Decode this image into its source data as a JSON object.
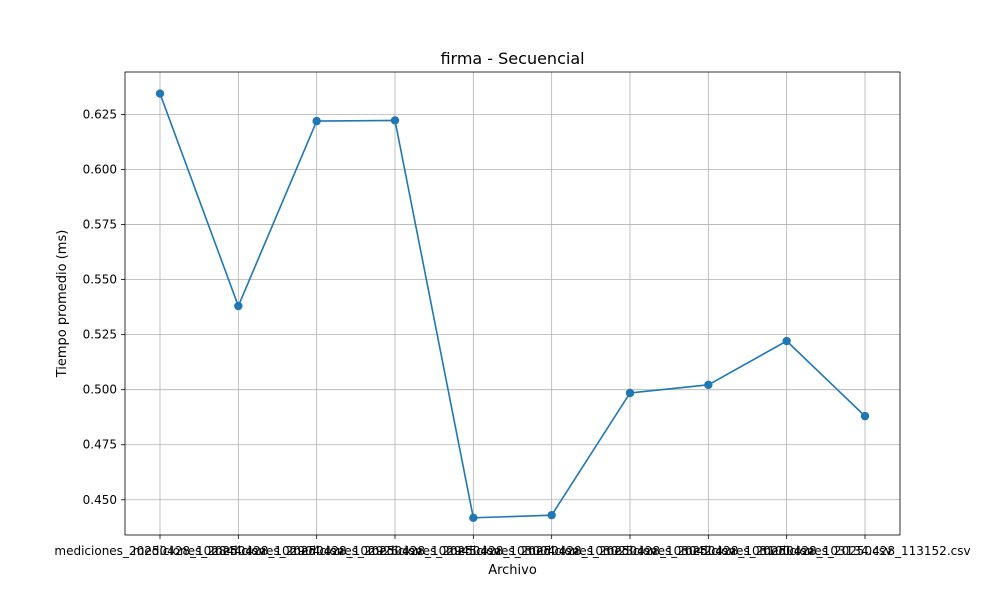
{
  "chart_data": {
    "type": "line",
    "title": "firma - Secuencial",
    "xlabel": "Archivo",
    "ylabel": "Tiempo promedio (ms)",
    "categories": [
      "mediciones_20250428_102844.csv",
      "mediciones_20250428_102904.csv",
      "mediciones_20250428_102926.csv",
      "mediciones_20250428_102945.csv",
      "mediciones_20250428_103004.csv",
      "mediciones_20250428_103023.csv",
      "mediciones_20250428_103042.csv",
      "mediciones_20250428_103100.csv",
      "mediciones_20250428_103134.csv",
      "mediciones_20250428_113152.csv"
    ],
    "values": [
      0.6345,
      0.538,
      0.622,
      0.6223,
      0.4418,
      0.443,
      0.4985,
      0.5022,
      0.5221,
      0.488
    ],
    "ylim": [
      0.434,
      0.6443
    ],
    "yticks": [
      0.45,
      0.475,
      0.5,
      0.525,
      0.55,
      0.575,
      0.6,
      0.625
    ],
    "ytick_labels": [
      "0.450",
      "0.475",
      "0.500",
      "0.525",
      "0.550",
      "0.575",
      "0.600",
      "0.625"
    ],
    "grid": true,
    "color": "#1f77b4"
  }
}
